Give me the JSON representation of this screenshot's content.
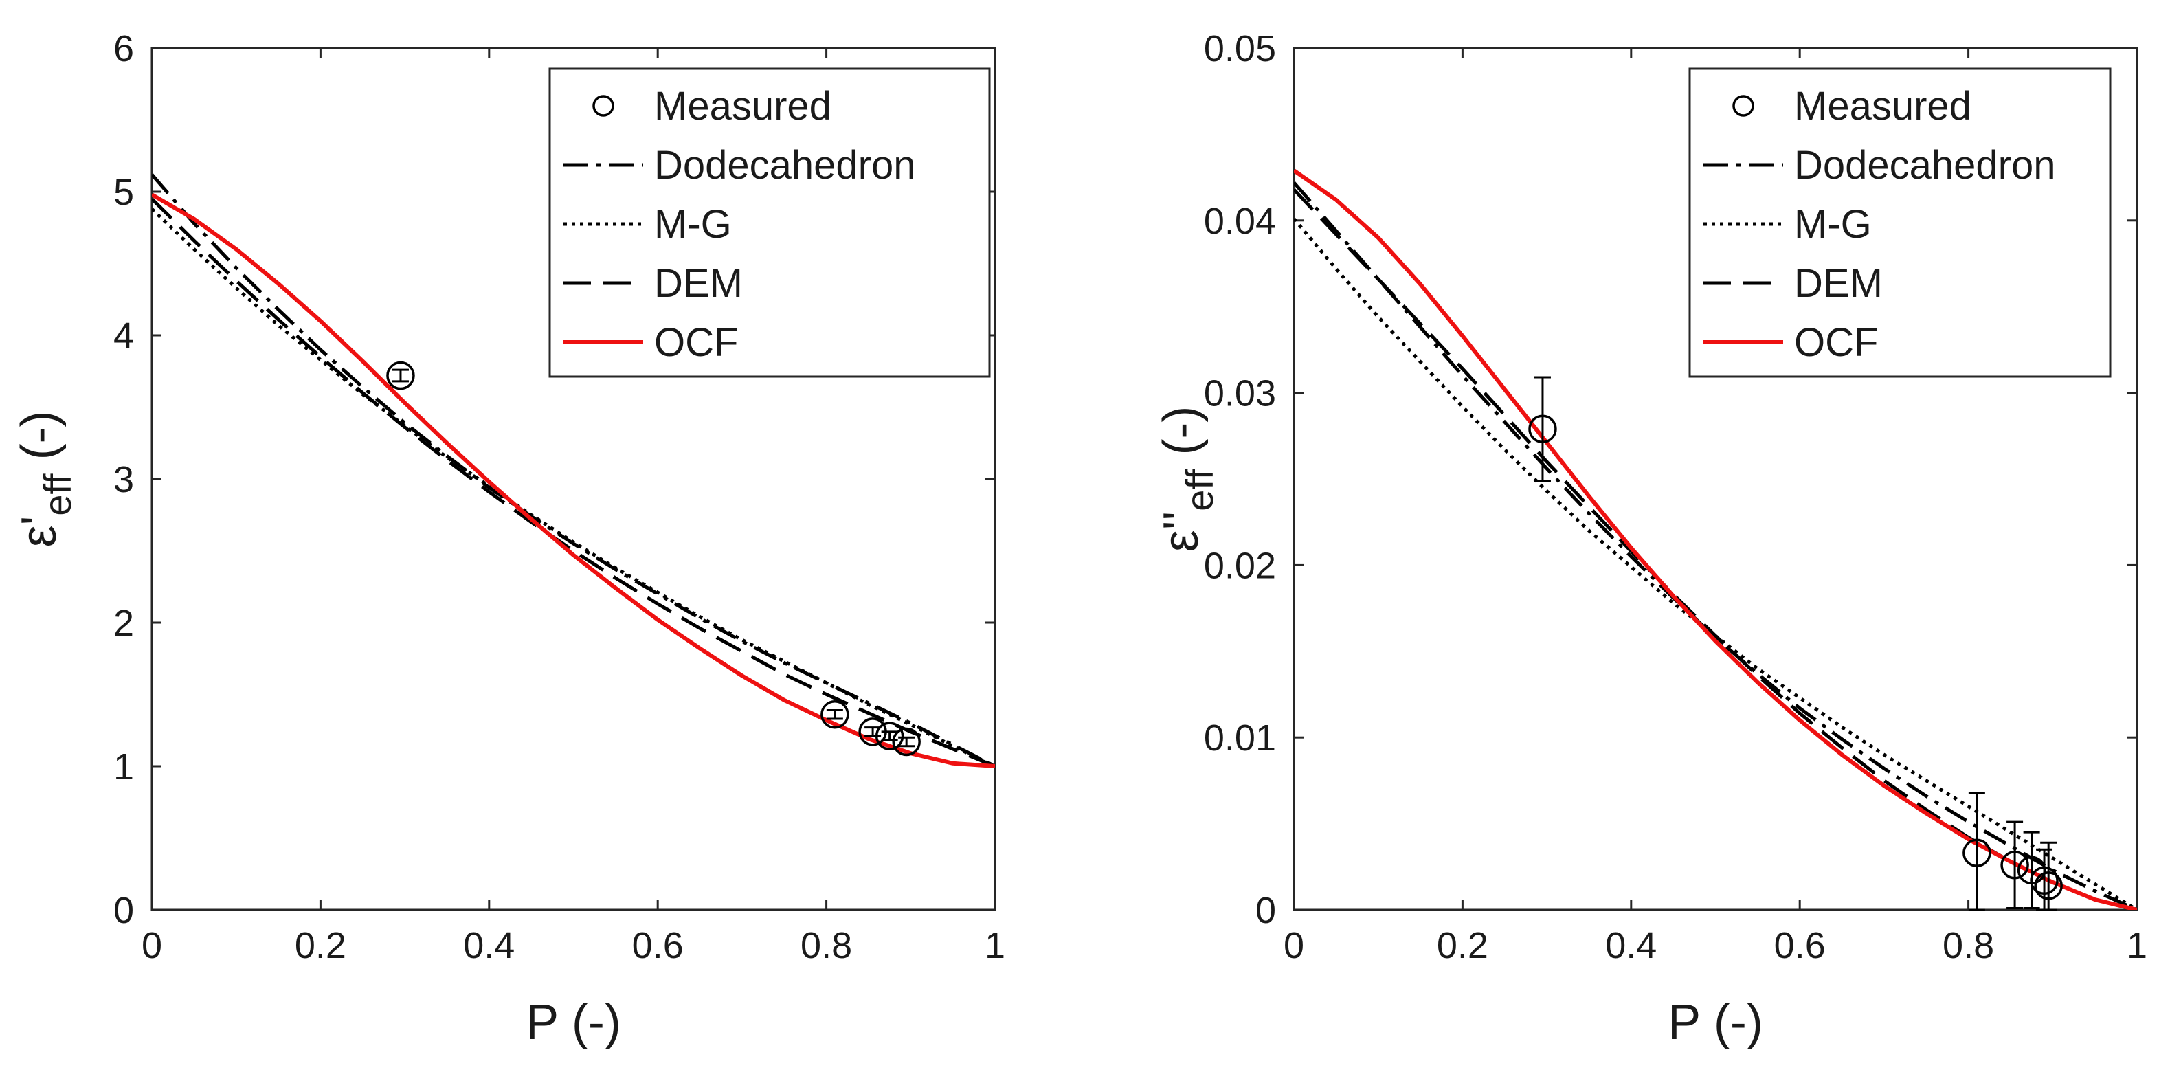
{
  "chart_data": [
    {
      "type": "line",
      "xlabel": "P (-)",
      "ylabel_main": "ε'",
      "ylabel_sub": "eff",
      "ylabel_tail": " (-)",
      "xlim": [
        0,
        1
      ],
      "ylim": [
        0,
        6
      ],
      "xticks": [
        0,
        0.2,
        0.4,
        0.6,
        0.8,
        1
      ],
      "xtick_labels": [
        "0",
        "0.2",
        "0.4",
        "0.6",
        "0.8",
        "1"
      ],
      "yticks": [
        0,
        1,
        2,
        3,
        4,
        5,
        6
      ],
      "ytick_labels": [
        "0",
        "1",
        "2",
        "3",
        "4",
        "5",
        "6"
      ],
      "legend_position": "top-right",
      "legend": [
        "Measured",
        "Dodecahedron",
        "M-G",
        "DEM",
        "OCF"
      ],
      "series": [
        {
          "name": "Dodecahedron",
          "style": "dashdot",
          "color": "#000000",
          "x": [
            0,
            0.05,
            0.1,
            0.15,
            0.2,
            0.25,
            0.3,
            0.35,
            0.4,
            0.45,
            0.5,
            0.55,
            0.6,
            0.65,
            0.7,
            0.75,
            0.8,
            0.85,
            0.9,
            0.95,
            1
          ],
          "y": [
            5.12,
            4.78,
            4.47,
            4.18,
            3.9,
            3.64,
            3.39,
            3.16,
            2.94,
            2.74,
            2.55,
            2.37,
            2.2,
            2.03,
            1.87,
            1.72,
            1.58,
            1.44,
            1.3,
            1.15,
            1.0
          ]
        },
        {
          "name": "M-G",
          "style": "dotted",
          "color": "#000000",
          "x": [
            0,
            0.05,
            0.1,
            0.15,
            0.2,
            0.25,
            0.3,
            0.35,
            0.4,
            0.45,
            0.5,
            0.55,
            0.6,
            0.65,
            0.7,
            0.75,
            0.8,
            0.85,
            0.9,
            0.95,
            1
          ],
          "y": [
            4.88,
            4.6,
            4.33,
            4.07,
            3.83,
            3.59,
            3.37,
            3.15,
            2.95,
            2.75,
            2.56,
            2.38,
            2.21,
            2.04,
            1.88,
            1.73,
            1.58,
            1.43,
            1.29,
            1.14,
            1.0
          ]
        },
        {
          "name": "DEM",
          "style": "dashed",
          "color": "#000000",
          "x": [
            0,
            0.05,
            0.1,
            0.15,
            0.2,
            0.25,
            0.3,
            0.35,
            0.4,
            0.45,
            0.5,
            0.55,
            0.6,
            0.65,
            0.7,
            0.75,
            0.8,
            0.85,
            0.9,
            0.95,
            1
          ],
          "y": [
            4.95,
            4.66,
            4.38,
            4.11,
            3.85,
            3.6,
            3.36,
            3.13,
            2.91,
            2.7,
            2.5,
            2.31,
            2.13,
            1.96,
            1.8,
            1.64,
            1.5,
            1.37,
            1.24,
            1.12,
            1.0
          ]
        },
        {
          "name": "OCF",
          "style": "solid",
          "color": "#ee1111",
          "x": [
            0,
            0.05,
            0.1,
            0.15,
            0.2,
            0.25,
            0.3,
            0.35,
            0.4,
            0.45,
            0.5,
            0.55,
            0.6,
            0.65,
            0.7,
            0.75,
            0.8,
            0.85,
            0.9,
            0.95,
            1
          ],
          "y": [
            4.98,
            4.81,
            4.6,
            4.36,
            4.1,
            3.82,
            3.53,
            3.25,
            2.98,
            2.72,
            2.47,
            2.24,
            2.02,
            1.82,
            1.63,
            1.46,
            1.32,
            1.19,
            1.09,
            1.02,
            1.0
          ]
        }
      ],
      "measured": {
        "x": [
          0.295,
          0.81,
          0.855,
          0.875,
          0.895
        ],
        "y": [
          3.72,
          1.36,
          1.24,
          1.21,
          1.17
        ],
        "err": [
          0.04,
          0.03,
          0.03,
          0.03,
          0.03
        ]
      }
    },
    {
      "type": "line",
      "xlabel": "P (-)",
      "ylabel_main": "ε''",
      "ylabel_sub": "eff",
      "ylabel_tail": " (-)",
      "xlim": [
        0,
        1
      ],
      "ylim": [
        0,
        0.05
      ],
      "xticks": [
        0,
        0.2,
        0.4,
        0.6,
        0.8,
        1
      ],
      "xtick_labels": [
        "0",
        "0.2",
        "0.4",
        "0.6",
        "0.8",
        "1"
      ],
      "yticks": [
        0,
        0.01,
        0.02,
        0.03,
        0.04,
        0.05
      ],
      "ytick_labels": [
        "0",
        "0.01",
        "0.02",
        "0.03",
        "0.04",
        "0.05"
      ],
      "legend_position": "top-right",
      "legend": [
        "Measured",
        "Dodecahedron",
        "M-G",
        "DEM",
        "OCF"
      ],
      "series": [
        {
          "name": "Dodecahedron",
          "style": "dashdot",
          "color": "#000000",
          "x": [
            0,
            0.05,
            0.1,
            0.15,
            0.2,
            0.25,
            0.3,
            0.35,
            0.4,
            0.45,
            0.5,
            0.55,
            0.6,
            0.65,
            0.7,
            0.75,
            0.8,
            0.85,
            0.9,
            0.95,
            1
          ],
          "y": [
            0.0422,
            0.0394,
            0.0366,
            0.0338,
            0.031,
            0.0283,
            0.0256,
            0.023,
            0.0205,
            0.0181,
            0.0158,
            0.0137,
            0.0117,
            0.0099,
            0.0082,
            0.0066,
            0.0051,
            0.0037,
            0.0023,
            0.0011,
            0.0
          ]
        },
        {
          "name": "M-G",
          "style": "dotted",
          "color": "#000000",
          "x": [
            0,
            0.05,
            0.1,
            0.15,
            0.2,
            0.25,
            0.3,
            0.35,
            0.4,
            0.45,
            0.5,
            0.55,
            0.6,
            0.65,
            0.7,
            0.75,
            0.8,
            0.85,
            0.9,
            0.95,
            1
          ],
          "y": [
            0.0401,
            0.0372,
            0.0344,
            0.0318,
            0.0292,
            0.0267,
            0.0243,
            0.022,
            0.0199,
            0.0178,
            0.0159,
            0.014,
            0.0123,
            0.0106,
            0.009,
            0.0075,
            0.006,
            0.0045,
            0.003,
            0.0015,
            0.0
          ]
        },
        {
          "name": "DEM",
          "style": "dashed",
          "color": "#000000",
          "x": [
            0,
            0.05,
            0.1,
            0.15,
            0.2,
            0.25,
            0.3,
            0.35,
            0.4,
            0.45,
            0.5,
            0.55,
            0.6,
            0.65,
            0.7,
            0.75,
            0.8,
            0.85,
            0.9,
            0.95,
            1
          ],
          "y": [
            0.0418,
            0.0392,
            0.0366,
            0.034,
            0.0314,
            0.0287,
            0.026,
            0.0234,
            0.0208,
            0.0183,
            0.0159,
            0.0136,
            0.0114,
            0.0094,
            0.0075,
            0.0058,
            0.0042,
            0.0028,
            0.0016,
            0.0006,
            0.0
          ]
        },
        {
          "name": "OCF",
          "style": "solid",
          "color": "#ee1111",
          "x": [
            0,
            0.05,
            0.1,
            0.15,
            0.2,
            0.25,
            0.3,
            0.35,
            0.4,
            0.45,
            0.5,
            0.55,
            0.6,
            0.65,
            0.7,
            0.75,
            0.8,
            0.85,
            0.9,
            0.95,
            1
          ],
          "y": [
            0.0429,
            0.0412,
            0.039,
            0.0363,
            0.0333,
            0.0302,
            0.0271,
            0.024,
            0.021,
            0.0182,
            0.0156,
            0.0132,
            0.011,
            0.009,
            0.0072,
            0.0056,
            0.0041,
            0.0028,
            0.0016,
            0.0006,
            0.0
          ]
        }
      ],
      "measured": {
        "x": [
          0.295,
          0.81,
          0.855,
          0.875,
          0.89,
          0.895
        ],
        "y": [
          0.0279,
          0.0033,
          0.0026,
          0.0023,
          0.0017,
          0.0014
        ],
        "err": [
          0.003,
          0.0035,
          0.0025,
          0.0022,
          0.0018,
          0.0025
        ]
      }
    }
  ]
}
